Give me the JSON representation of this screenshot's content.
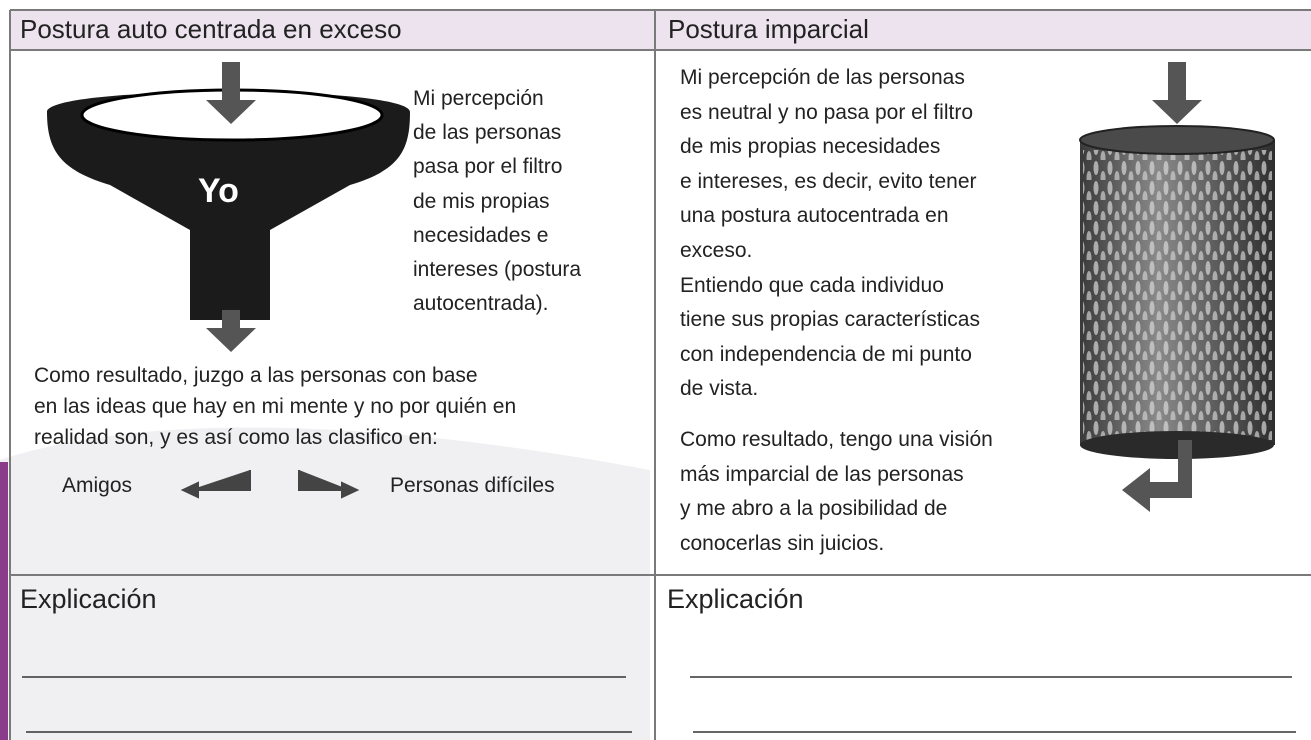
{
  "header": {
    "left": "Postura auto centrada en exceso",
    "right": "Postura imparcial"
  },
  "left": {
    "funnel_label": "Yo",
    "description": [
      "Mi percepción",
      "de las personas",
      "pasa por el filtro",
      "de mis propias",
      "necesidades e",
      "intereses (postura",
      "autocentrada)."
    ],
    "result": [
      "Como resultado, juzgo a las personas con base",
      "en las ideas que hay en mi mente y no por quién en",
      "realidad son, y es así como las clasifico en:"
    ],
    "options": [
      "Amigos",
      "Personas difíciles"
    ],
    "explanation": "Explicación"
  },
  "right": {
    "description": [
      "Mi percepción de las personas",
      "es neutral y no pasa por el filtro",
      "de mis propias necesidades",
      "e intereses, es decir, evito tener",
      "una postura autocentrada en",
      "exceso.",
      "Entiendo que cada individuo",
      "tiene sus propias características",
      "con independencia de mi punto",
      "de vista."
    ],
    "result": [
      "Como resultado, tengo una visión",
      "más imparcial de las personas",
      "y me abro a la posibilidad de",
      "conocerlas sin juicios."
    ],
    "explanation": "Explicación"
  }
}
